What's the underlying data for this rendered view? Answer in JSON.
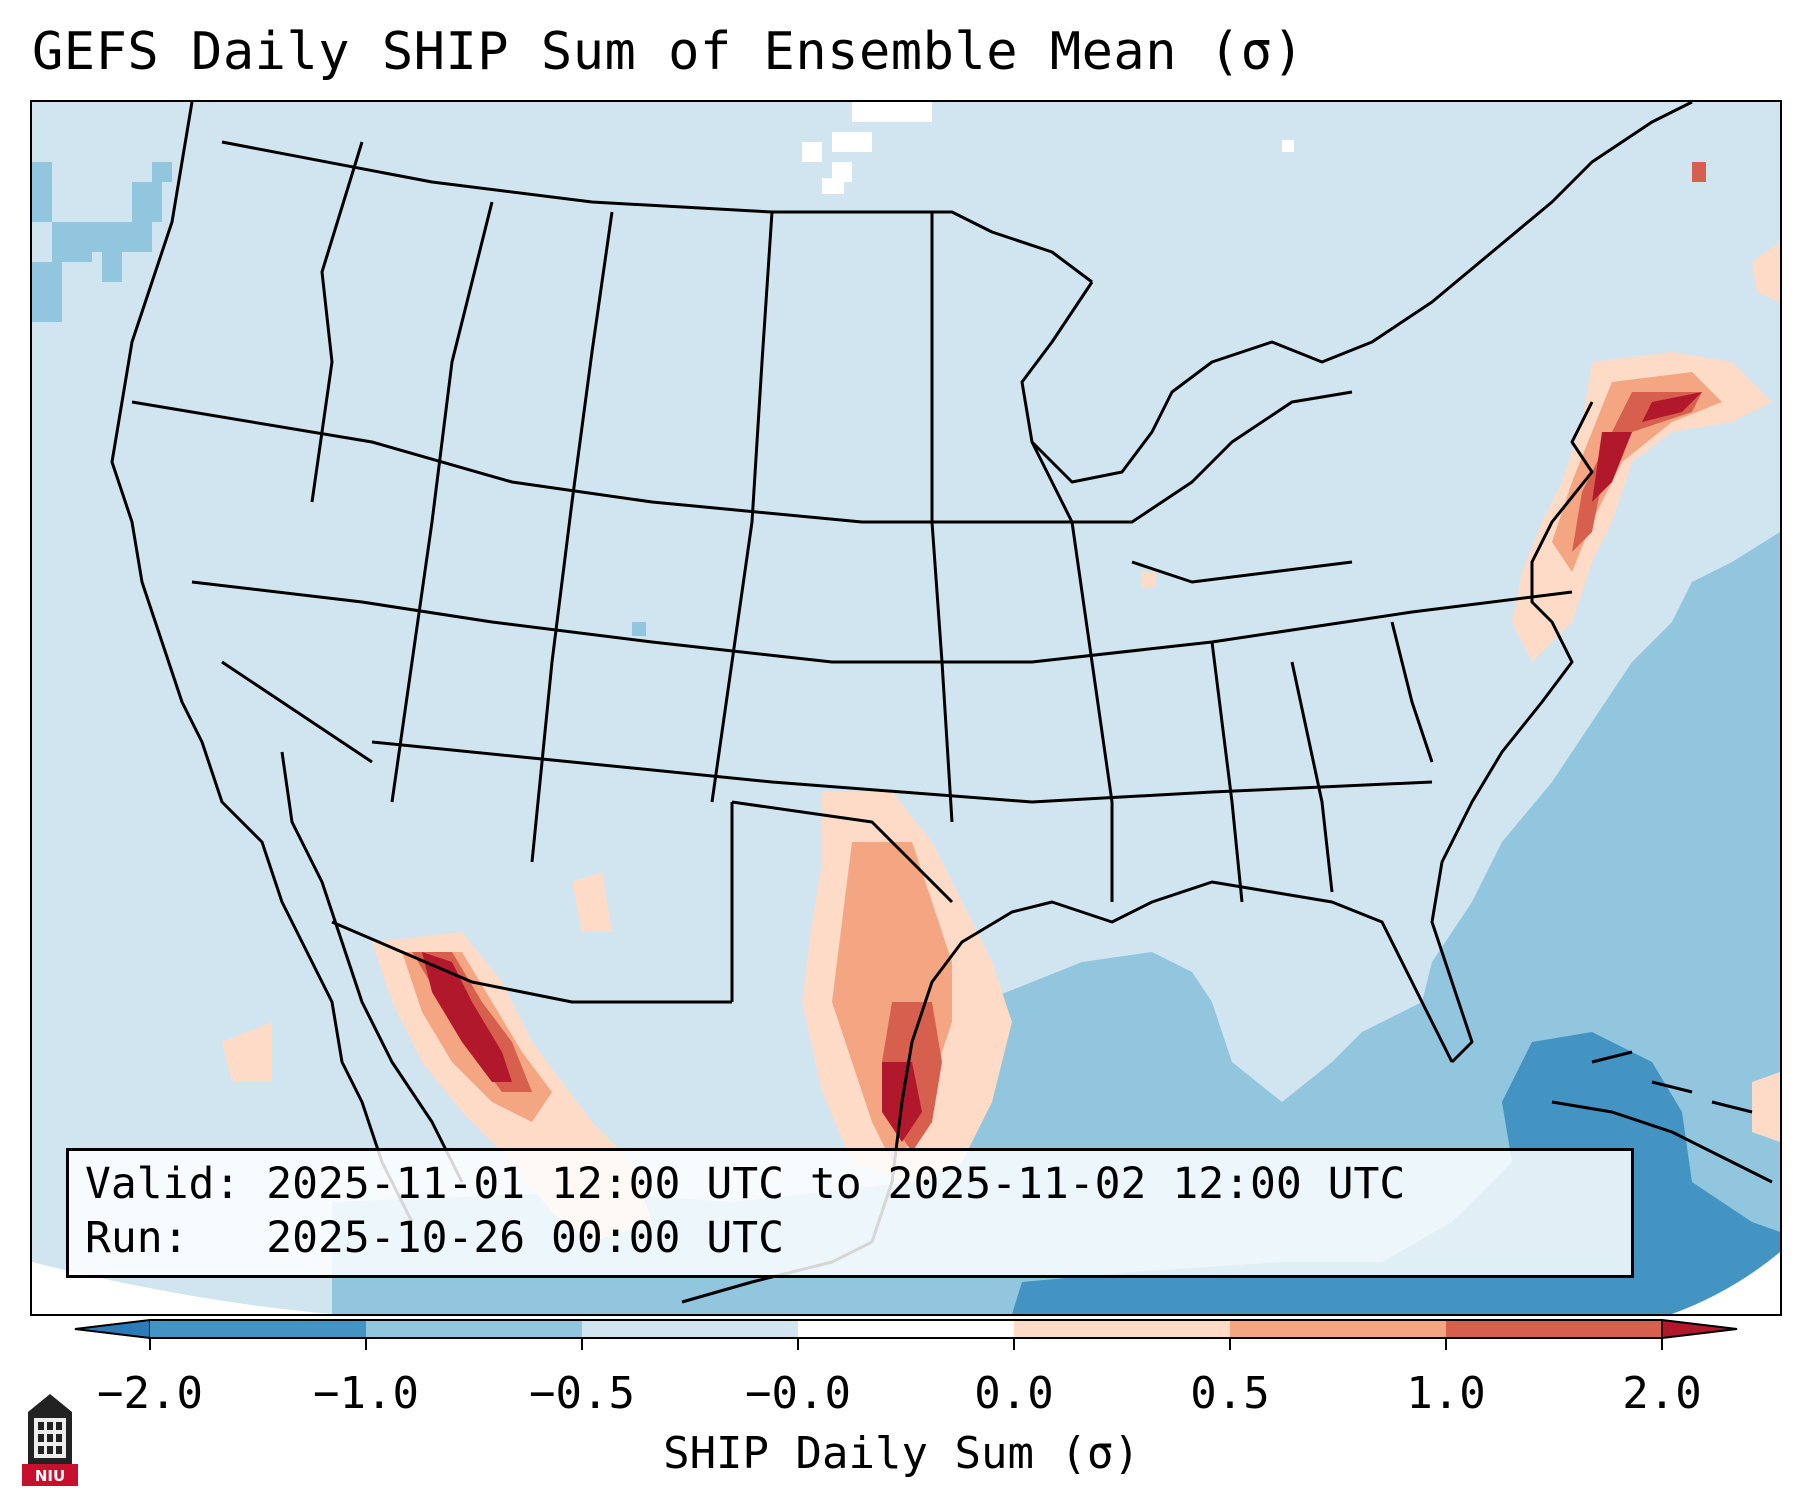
{
  "title": "GEFS Daily SHIP Sum of Ensemble Mean (σ)",
  "info": {
    "valid_label": "Valid:",
    "valid_value": "2025-11-01 12:00 UTC to 2025-11-02 12:00 UTC",
    "run_label": "Run:",
    "run_value": "2025-10-26 00:00 UTC"
  },
  "colorbar": {
    "label": "SHIP Daily Sum (σ)",
    "ticks": [
      "−2.0",
      "−1.0",
      "−0.5",
      "−0.0",
      "0.0",
      "0.5",
      "1.0",
      "2.0"
    ],
    "colors": [
      "#2c7bb6",
      "#4393c3",
      "#92c5de",
      "#d1e5f0",
      "#fddbc7",
      "#f4a582",
      "#d6604d",
      "#b2182b"
    ],
    "extend": "both"
  },
  "map": {
    "background_color": "#d1e4f0",
    "ocean_color": "#92c5de",
    "deep_color": "#4393c3",
    "region": "CONUS"
  },
  "logo": {
    "text": "NIU",
    "icon": "university-tower-icon"
  }
}
